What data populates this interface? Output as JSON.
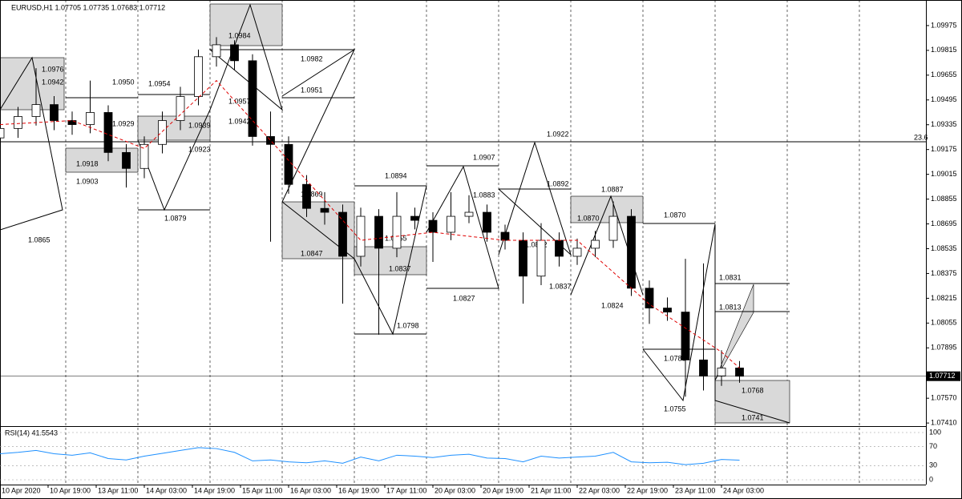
{
  "chart_data": {
    "type": "candlestick",
    "title": "EURUSD,H1  1.07705 1.07735 1.07683 1.07712",
    "x": [
      0,
      6,
      12,
      18,
      24,
      30,
      36,
      42,
      48,
      54,
      60,
      66,
      72,
      78,
      84,
      90,
      96,
      102,
      108,
      114,
      120,
      126,
      132,
      138,
      144,
      150,
      156,
      162,
      168,
      174,
      180,
      186,
      192,
      198,
      204,
      210,
      216,
      222,
      228,
      234,
      240,
      246
    ],
    "open": [
      1.0925,
      1.09311,
      1.09388,
      1.09465,
      1.09362,
      1.09336,
      1.09414,
      1.09156,
      1.09053,
      1.09208,
      1.09362,
      1.09517,
      1.09774,
      1.09851,
      1.09748,
      1.09259,
      1.09208,
      1.0895,
      1.08795,
      1.0877,
      1.08486,
      1.08744,
      1.08538,
      1.08744,
      1.08718,
      1.08641,
      1.08744,
      1.0877,
      1.08641,
      1.08589,
      1.08358,
      1.08589,
      1.08486,
      1.08538,
      1.08589,
      1.08744,
      1.0828,
      1.08152,
      1.08126,
      1.07817,
      1.07714,
      1.07765
    ],
    "high": [
      1.0937,
      1.0945,
      1.097,
      1.0952,
      1.0942,
      1.0962,
      1.0946,
      1.0921,
      1.0926,
      1.0942,
      1.0958,
      1.0982,
      1.099,
      1.0988,
      1.0979,
      1.0942,
      1.0926,
      1.0901,
      1.089,
      1.0882,
      1.088,
      1.0879,
      1.089,
      1.088,
      1.0877,
      1.089,
      1.0888,
      1.0882,
      1.0869,
      1.0864,
      1.087,
      1.0864,
      1.086,
      1.0865,
      1.0884,
      1.0879,
      1.0833,
      1.0822,
      1.0847,
      1.0844,
      1.0788,
      1.0781
    ],
    "low": [
      1.0919,
      1.0925,
      1.0933,
      1.093,
      1.0927,
      1.0928,
      1.091,
      1.0893,
      1.0899,
      1.0915,
      1.093,
      1.0946,
      1.0971,
      1.0969,
      1.092,
      1.0858,
      1.0889,
      1.0874,
      1.0869,
      1.0818,
      1.0842,
      1.0798,
      1.0848,
      1.0866,
      1.0845,
      1.0859,
      1.087,
      1.0858,
      1.0853,
      1.0818,
      1.083,
      1.0842,
      1.0843,
      1.0848,
      1.0854,
      1.0823,
      1.0805,
      1.0807,
      1.0758,
      1.0762,
      1.0765,
      1.0767
    ],
    "close": [
      1.09311,
      1.09388,
      1.09465,
      1.09362,
      1.09336,
      1.09414,
      1.09156,
      1.09053,
      1.09208,
      1.09362,
      1.09517,
      1.09774,
      1.09851,
      1.09748,
      1.09259,
      1.09208,
      1.0895,
      1.08795,
      1.0877,
      1.08486,
      1.08744,
      1.08538,
      1.08744,
      1.08718,
      1.08641,
      1.08744,
      1.0877,
      1.08641,
      1.08589,
      1.08358,
      1.08589,
      1.08486,
      1.08538,
      1.08589,
      1.08744,
      1.0828,
      1.08152,
      1.08126,
      1.07817,
      1.07714,
      1.07765,
      1.07712
    ],
    "ma": {
      "color": "#e00000",
      "x": [
        0,
        24,
        48,
        72,
        96,
        120,
        144,
        168,
        192,
        216,
        240,
        246
      ],
      "values": [
        1.09336,
        1.09362,
        1.09182,
        1.0962,
        1.09105,
        1.08589,
        1.08641,
        1.08589,
        1.08589,
        1.08177,
        1.07868,
        1.07765
      ]
    },
    "xlim": [
      0,
      308
    ],
    "xticks": [
      {
        "value": 0,
        "label": "10 Apr 2020"
      },
      {
        "value": 16,
        "label": "10 Apr 19:00"
      },
      {
        "value": 32,
        "label": "13 Apr 11:00"
      },
      {
        "value": 48,
        "label": "14 Apr 03:00"
      },
      {
        "value": 64,
        "label": "14 Apr 19:00"
      },
      {
        "value": 80,
        "label": "15 Apr 11:00"
      },
      {
        "value": 96,
        "label": "16 Apr 03:00"
      },
      {
        "value": 112,
        "label": "16 Apr 19:00"
      },
      {
        "value": 128,
        "label": "17 Apr 11:00"
      },
      {
        "value": 144,
        "label": "20 Apr 03:00"
      },
      {
        "value": 160,
        "label": "20 Apr 19:00"
      },
      {
        "value": 176,
        "label": "21 Apr 11:00"
      },
      {
        "value": 192,
        "label": "22 Apr 03:00"
      },
      {
        "value": 208,
        "label": "22 Apr 19:00"
      },
      {
        "value": 224,
        "label": "23 Apr 11:00"
      },
      {
        "value": 240,
        "label": "24 Apr 03:00"
      }
    ],
    "ylim": [
      1.0739,
      1.1014
    ],
    "yticks": [
      1.09975,
      1.09815,
      1.09655,
      1.09495,
      1.09335,
      1.09175,
      1.09015,
      1.08855,
      1.08695,
      1.08535,
      1.08375,
      1.08215,
      1.08055,
      1.07895,
      {
        "value": 1.0757,
        "label": "1.07570"
      },
      {
        "value": 1.0741,
        "label": "1.07410"
      }
    ],
    "annotations": [
      "1.0976",
      "1.0942",
      "1.0950",
      "1.0954",
      "1.0929",
      "1.0939",
      "1.0923",
      "1.0918",
      "1.0903",
      "1.0879",
      "1.0865",
      "1.0984",
      "1.0982",
      "1.0951",
      "1.0957",
      "1.0942",
      "1.0922",
      "1.0907",
      "1.0894",
      "1.0892",
      "1.0887",
      "1.0883",
      "1.0869",
      "1.0870",
      "1.0870",
      "1.0847",
      "1.0855",
      "1.0852",
      "1.0837",
      "1.0837",
      "1.0827",
      "1.0824",
      "1.0798",
      "1.0831",
      "1.0813",
      "1.0788",
      "1.0768",
      "1.0755",
      "1.0741",
      "23.6"
    ],
    "rsi": {
      "title": "RSI(14) 41.5543",
      "color": "#1e90ff",
      "ylim": [
        0,
        100
      ],
      "yticks": [
        100,
        70,
        30,
        0
      ],
      "values": [
        55,
        58,
        62,
        55,
        52,
        57,
        45,
        42,
        50,
        56,
        62,
        68,
        66,
        58,
        40,
        42,
        38,
        36,
        40,
        35,
        48,
        40,
        52,
        50,
        47,
        52,
        54,
        46,
        45,
        38,
        50,
        46,
        48,
        50,
        58,
        38,
        36,
        37,
        32,
        35,
        43,
        41.5543
      ]
    }
  }
}
